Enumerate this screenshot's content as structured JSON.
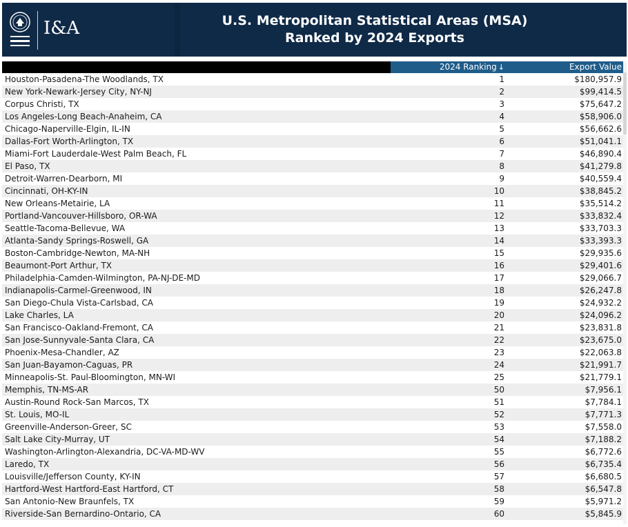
{
  "header": {
    "brand": "I&A",
    "title_line1": "U.S. Metropolitan Statistical Areas (MSA)",
    "title_line2": "Ranked by 2024 Exports"
  },
  "table": {
    "col_rank": "2024 Ranking",
    "col_export": "Export Value",
    "rows": [
      {
        "name": "Houston-Pasadena-The Woodlands, TX",
        "rank": "1",
        "value": "$180,957.9"
      },
      {
        "name": "New York-Newark-Jersey City, NY-NJ",
        "rank": "2",
        "value": "$99,414.5"
      },
      {
        "name": "Corpus Christi, TX",
        "rank": "3",
        "value": "$75,647.2"
      },
      {
        "name": "Los Angeles-Long Beach-Anaheim, CA",
        "rank": "4",
        "value": "$58,906.0"
      },
      {
        "name": "Chicago-Naperville-Elgin, IL-IN",
        "rank": "5",
        "value": "$56,662.6"
      },
      {
        "name": "Dallas-Fort Worth-Arlington, TX",
        "rank": "6",
        "value": "$51,041.1"
      },
      {
        "name": "Miami-Fort Lauderdale-West Palm Beach, FL",
        "rank": "7",
        "value": "$46,890.4"
      },
      {
        "name": "El Paso, TX",
        "rank": "8",
        "value": "$41,279.8"
      },
      {
        "name": "Detroit-Warren-Dearborn, MI",
        "rank": "9",
        "value": "$40,559.4"
      },
      {
        "name": "Cincinnati, OH-KY-IN",
        "rank": "10",
        "value": "$38,845.2"
      },
      {
        "name": "New Orleans-Metairie, LA",
        "rank": "11",
        "value": "$35,514.2"
      },
      {
        "name": "Portland-Vancouver-Hillsboro, OR-WA",
        "rank": "12",
        "value": "$33,832.4"
      },
      {
        "name": "Seattle-Tacoma-Bellevue, WA",
        "rank": "13",
        "value": "$33,703.3"
      },
      {
        "name": "Atlanta-Sandy Springs-Roswell, GA",
        "rank": "14",
        "value": "$33,393.3"
      },
      {
        "name": "Boston-Cambridge-Newton, MA-NH",
        "rank": "15",
        "value": "$29,935.6"
      },
      {
        "name": "Beaumont-Port Arthur, TX",
        "rank": "16",
        "value": "$29,401.6"
      },
      {
        "name": "Philadelphia-Camden-Wilmington, PA-NJ-DE-MD",
        "rank": "17",
        "value": "$29,066.7"
      },
      {
        "name": "Indianapolis-Carmel-Greenwood, IN",
        "rank": "18",
        "value": "$26,247.8"
      },
      {
        "name": "San Diego-Chula Vista-Carlsbad, CA",
        "rank": "19",
        "value": "$24,932.2"
      },
      {
        "name": "Lake Charles, LA",
        "rank": "20",
        "value": "$24,096.2"
      },
      {
        "name": "San Francisco-Oakland-Fremont, CA",
        "rank": "21",
        "value": "$23,831.8"
      },
      {
        "name": "San Jose-Sunnyvale-Santa Clara, CA",
        "rank": "22",
        "value": "$23,675.0"
      },
      {
        "name": "Phoenix-Mesa-Chandler, AZ",
        "rank": "23",
        "value": "$22,063.8"
      },
      {
        "name": "San Juan-Bayamon-Caguas, PR",
        "rank": "24",
        "value": "$21,991.7"
      },
      {
        "name": "Minneapolis-St. Paul-Bloomington, MN-WI",
        "rank": "25",
        "value": "$21,779.1"
      },
      {
        "name": "Memphis, TN-MS-AR",
        "rank": "50",
        "value": "$7,956.1"
      },
      {
        "name": "Austin-Round Rock-San Marcos, TX",
        "rank": "51",
        "value": "$7,784.1"
      },
      {
        "name": "St. Louis, MO-IL",
        "rank": "52",
        "value": "$7,771.3"
      },
      {
        "name": "Greenville-Anderson-Greer, SC",
        "rank": "53",
        "value": "$7,558.0"
      },
      {
        "name": "Salt Lake City-Murray, UT",
        "rank": "54",
        "value": "$7,188.2"
      },
      {
        "name": "Washington-Arlington-Alexandria, DC-VA-MD-WV",
        "rank": "55",
        "value": "$6,772.6"
      },
      {
        "name": "Laredo, TX",
        "rank": "56",
        "value": "$6,735.4"
      },
      {
        "name": "Louisville/Jefferson County, KY-IN",
        "rank": "57",
        "value": "$6,680.5"
      },
      {
        "name": "Hartford-West Hartford-East Hartford, CT",
        "rank": "58",
        "value": "$6,547.8"
      },
      {
        "name": "San Antonio-New Braunfels, TX",
        "rank": "59",
        "value": "$5,971.2"
      },
      {
        "name": "Riverside-San Bernardino-Ontario, CA",
        "rank": "60",
        "value": "$5,845.9"
      }
    ]
  },
  "colors": {
    "header_bg": "#0f2a47",
    "column_header_bg": "#1f5c8a",
    "alt_row_bg": "#eeeeee"
  }
}
